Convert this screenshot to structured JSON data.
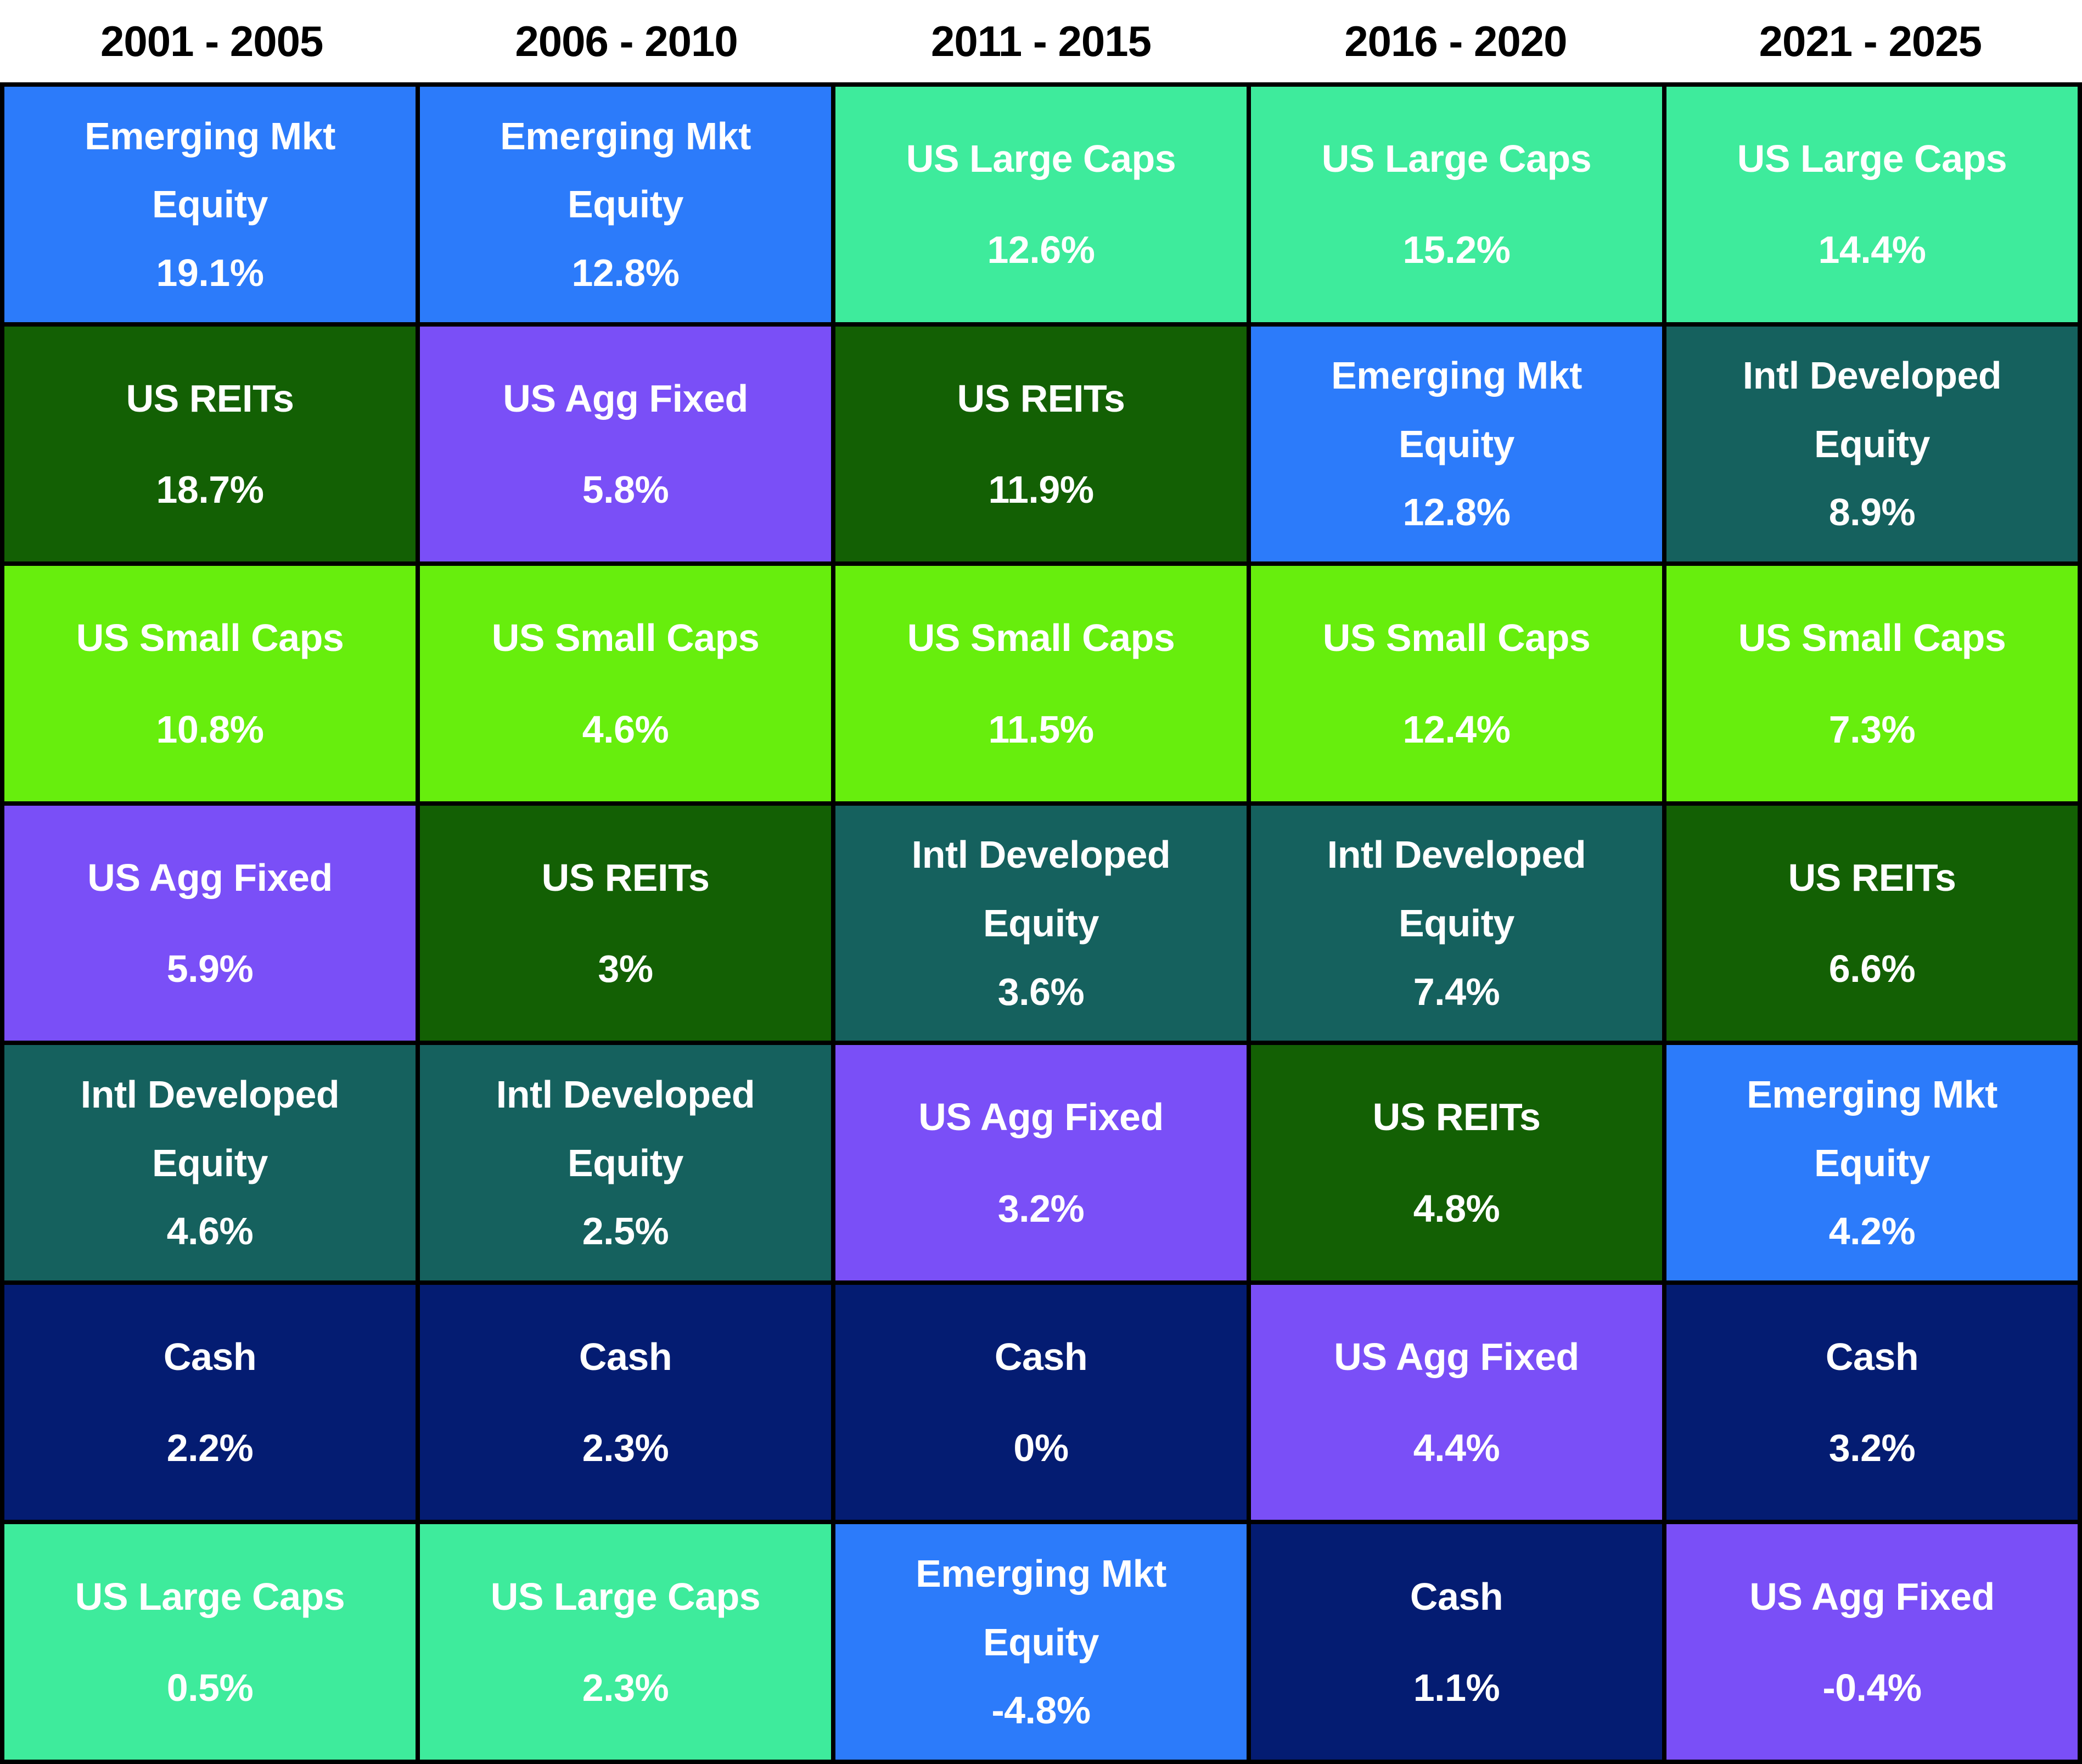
{
  "page": {
    "background": "#ffffff",
    "grid_line_color": "#000000",
    "header_text_color": "#000000",
    "cell_text_color": "#ffffff"
  },
  "header": {
    "periods": [
      "2001 - 2005",
      "2006 - 2010",
      "2011 - 2015",
      "2016 - 2020",
      "2021 - 2025"
    ]
  },
  "assets": {
    "emerging": {
      "label": "Emerging Mkt Equity",
      "label_lines": [
        "Emerging Mkt",
        "Equity"
      ],
      "color": "#2C7BFA"
    },
    "large": {
      "label": "US Large Caps",
      "label_lines": [
        "US Large Caps"
      ],
      "color": "#3EEB9C"
    },
    "small": {
      "label": "US Small Caps",
      "label_lines": [
        "US Small Caps"
      ],
      "color": "#67EE0D"
    },
    "reits": {
      "label": "US REITs",
      "label_lines": [
        "US REITs"
      ],
      "color": "#136004"
    },
    "agg": {
      "label": "US Agg Fixed",
      "label_lines": [
        "US Agg Fixed"
      ],
      "color": "#7A4FF7"
    },
    "intl": {
      "label": "Intl Developed Equity",
      "label_lines": [
        "Intl Developed",
        "Equity"
      ],
      "color": "#15615E"
    },
    "cash": {
      "label": "Cash",
      "label_lines": [
        "Cash"
      ],
      "color": "#041C72"
    }
  },
  "chart_data": {
    "type": "table",
    "title": "",
    "columns": [
      "2001 - 2005",
      "2006 - 2010",
      "2011 - 2015",
      "2016 - 2020",
      "2021 - 2025"
    ],
    "row_meaning": "assets ranked by 5-year annualized return, best (top) to worst (bottom)",
    "cells_by_column": [
      [
        {
          "asset_key": "emerging",
          "asset": "Emerging Mkt Equity",
          "pct": 19.1,
          "text": "19.1%"
        },
        {
          "asset_key": "reits",
          "asset": "US REITs",
          "pct": 18.7,
          "text": "18.7%"
        },
        {
          "asset_key": "small",
          "asset": "US Small Caps",
          "pct": 10.8,
          "text": "10.8%"
        },
        {
          "asset_key": "agg",
          "asset": "US Agg Fixed",
          "pct": 5.9,
          "text": "5.9%"
        },
        {
          "asset_key": "intl",
          "asset": "Intl Developed Equity",
          "pct": 4.6,
          "text": "4.6%"
        },
        {
          "asset_key": "cash",
          "asset": "Cash",
          "pct": 2.2,
          "text": "2.2%"
        },
        {
          "asset_key": "large",
          "asset": "US Large Caps",
          "pct": 0.5,
          "text": "0.5%"
        }
      ],
      [
        {
          "asset_key": "emerging",
          "asset": "Emerging Mkt Equity",
          "pct": 12.8,
          "text": "12.8%"
        },
        {
          "asset_key": "agg",
          "asset": "US Agg Fixed",
          "pct": 5.8,
          "text": "5.8%"
        },
        {
          "asset_key": "small",
          "asset": "US Small Caps",
          "pct": 4.6,
          "text": "4.6%"
        },
        {
          "asset_key": "reits",
          "asset": "US REITs",
          "pct": 3,
          "text": "3%"
        },
        {
          "asset_key": "intl",
          "asset": "Intl Developed Equity",
          "pct": 2.5,
          "text": "2.5%"
        },
        {
          "asset_key": "cash",
          "asset": "Cash",
          "pct": 2.3,
          "text": "2.3%"
        },
        {
          "asset_key": "large",
          "asset": "US Large Caps",
          "pct": 2.3,
          "text": "2.3%"
        }
      ],
      [
        {
          "asset_key": "large",
          "asset": "US Large Caps",
          "pct": 12.6,
          "text": "12.6%"
        },
        {
          "asset_key": "reits",
          "asset": "US REITs",
          "pct": 11.9,
          "text": "11.9%"
        },
        {
          "asset_key": "small",
          "asset": "US Small Caps",
          "pct": 11.5,
          "text": "11.5%"
        },
        {
          "asset_key": "intl",
          "asset": "Intl Developed Equity",
          "pct": 3.6,
          "text": "3.6%"
        },
        {
          "asset_key": "agg",
          "asset": "US Agg Fixed",
          "pct": 3.2,
          "text": "3.2%"
        },
        {
          "asset_key": "cash",
          "asset": "Cash",
          "pct": 0,
          "text": "0%"
        },
        {
          "asset_key": "emerging",
          "asset": "Emerging Mkt Equity",
          "pct": -4.8,
          "text": "-4.8%"
        }
      ],
      [
        {
          "asset_key": "large",
          "asset": "US Large Caps",
          "pct": 15.2,
          "text": "15.2%"
        },
        {
          "asset_key": "emerging",
          "asset": "Emerging Mkt Equity",
          "pct": 12.8,
          "text": "12.8%"
        },
        {
          "asset_key": "small",
          "asset": "US Small Caps",
          "pct": 12.4,
          "text": "12.4%"
        },
        {
          "asset_key": "intl",
          "asset": "Intl Developed Equity",
          "pct": 7.4,
          "text": "7.4%"
        },
        {
          "asset_key": "reits",
          "asset": "US REITs",
          "pct": 4.8,
          "text": "4.8%"
        },
        {
          "asset_key": "agg",
          "asset": "US Agg Fixed",
          "pct": 4.4,
          "text": "4.4%"
        },
        {
          "asset_key": "cash",
          "asset": "Cash",
          "pct": 1.1,
          "text": "1.1%"
        }
      ],
      [
        {
          "asset_key": "large",
          "asset": "US Large Caps",
          "pct": 14.4,
          "text": "14.4%"
        },
        {
          "asset_key": "intl",
          "asset": "Intl Developed Equity",
          "pct": 8.9,
          "text": "8.9%"
        },
        {
          "asset_key": "small",
          "asset": "US Small Caps",
          "pct": 7.3,
          "text": "7.3%"
        },
        {
          "asset_key": "reits",
          "asset": "US REITs",
          "pct": 6.6,
          "text": "6.6%"
        },
        {
          "asset_key": "emerging",
          "asset": "Emerging Mkt Equity",
          "pct": 4.2,
          "text": "4.2%"
        },
        {
          "asset_key": "cash",
          "asset": "Cash",
          "pct": 3.2,
          "text": "3.2%"
        },
        {
          "asset_key": "agg",
          "asset": "US Agg Fixed",
          "pct": -0.4,
          "text": "-0.4%"
        }
      ]
    ]
  }
}
